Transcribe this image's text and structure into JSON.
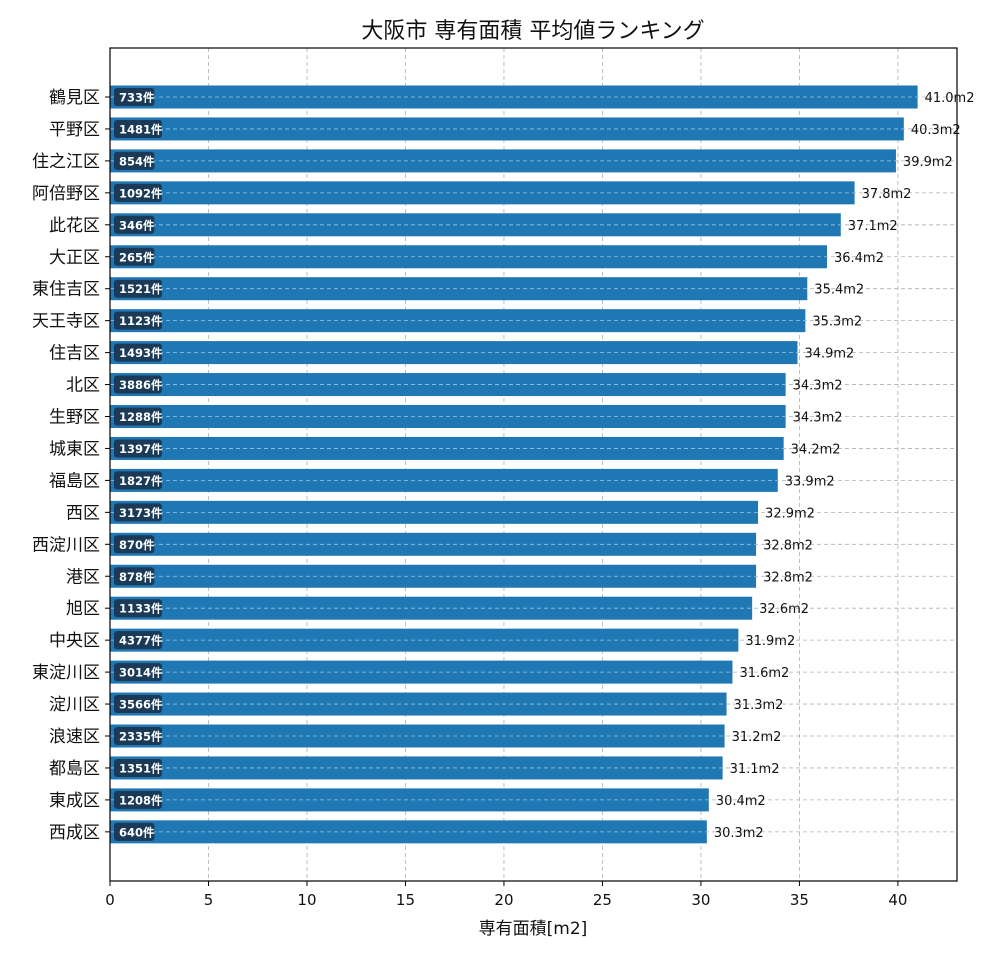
{
  "chart_data": {
    "type": "bar",
    "orientation": "horizontal",
    "title": "大阪市 専有面積 平均値ランキング",
    "xlabel": "専有面積[m2]",
    "ylabel": "",
    "xlim": [
      0,
      43
    ],
    "xticks": [
      0,
      5,
      10,
      15,
      20,
      25,
      30,
      35,
      40
    ],
    "grid": true,
    "bar_color": "#1f77b4",
    "count_badge_color": "#1b3a57",
    "unit_suffix": "m2",
    "count_suffix": "件",
    "categories": [
      "鶴見区",
      "平野区",
      "住之江区",
      "阿倍野区",
      "此花区",
      "大正区",
      "東住吉区",
      "天王寺区",
      "住吉区",
      "北区",
      "生野区",
      "城東区",
      "福島区",
      "西区",
      "西淀川区",
      "港区",
      "旭区",
      "中央区",
      "東淀川区",
      "淀川区",
      "浪速区",
      "都島区",
      "東成区",
      "西成区"
    ],
    "values": [
      41.0,
      40.3,
      39.9,
      37.8,
      37.1,
      36.4,
      35.4,
      35.3,
      34.9,
      34.3,
      34.3,
      34.2,
      33.9,
      32.9,
      32.8,
      32.8,
      32.6,
      31.9,
      31.6,
      31.3,
      31.2,
      31.1,
      30.4,
      30.3
    ],
    "value_labels": [
      "41.0m2",
      "40.3m2",
      "39.9m2",
      "37.8m2",
      "37.1m2",
      "36.4m2",
      "35.4m2",
      "35.3m2",
      "34.9m2",
      "34.3m2",
      "34.3m2",
      "34.2m2",
      "33.9m2",
      "32.9m2",
      "32.8m2",
      "32.8m2",
      "32.6m2",
      "31.9m2",
      "31.6m2",
      "31.3m2",
      "31.2m2",
      "31.1m2",
      "30.4m2",
      "30.3m2"
    ],
    "counts": [
      733,
      1481,
      854,
      1092,
      346,
      265,
      1521,
      1123,
      1493,
      3886,
      1288,
      1397,
      1827,
      3173,
      870,
      878,
      1133,
      4377,
      3014,
      3566,
      2335,
      1351,
      1208,
      640
    ]
  }
}
